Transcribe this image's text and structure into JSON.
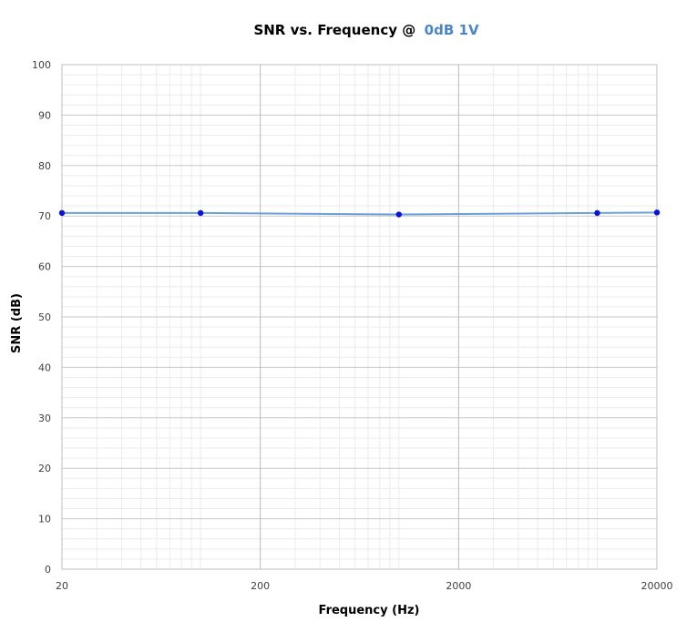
{
  "chart_data": {
    "type": "line",
    "title": "SNR vs. Frequency @",
    "title_highlight": "0dB 1V",
    "xlabel": "Frequency (Hz)",
    "ylabel": "SNR (dB)",
    "x_scale": "log",
    "xlim": [
      20,
      20000
    ],
    "ylim": [
      0,
      100
    ],
    "x_ticks": [
      "20",
      "200",
      "2000",
      "20000"
    ],
    "y_ticks": [
      "0",
      "10",
      "20",
      "30",
      "40",
      "50",
      "60",
      "70",
      "80",
      "90",
      "100"
    ],
    "grid": true,
    "legend": "none",
    "series": [
      {
        "x": [
          20,
          100,
          1000,
          10000,
          20000
        ],
        "y": [
          70.6,
          70.6,
          70.3,
          70.6,
          70.7
        ]
      }
    ],
    "colors": {
      "line": "#6a9fd8",
      "marker": "#0a14d8",
      "title_highlight": "#4a86c8",
      "grid_major": "#c8c8c8",
      "grid_minor": "#ececec",
      "grid_decade": "#b8b8b8"
    }
  }
}
